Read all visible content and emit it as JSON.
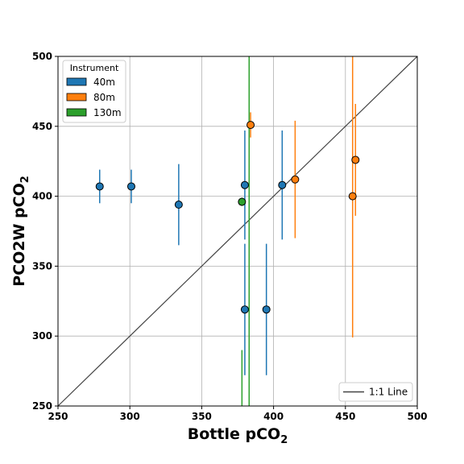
{
  "chart_data": {
    "type": "scatter",
    "xlabel": "Bottle pCO",
    "xlabel_sub": "2",
    "ylabel": "PCO2W pCO",
    "ylabel_sub": "2",
    "xlim": [
      250,
      500
    ],
    "ylim": [
      250,
      500
    ],
    "xticks": [
      250,
      300,
      350,
      400,
      450,
      500
    ],
    "yticks": [
      250,
      300,
      350,
      400,
      450,
      500
    ],
    "grid": true,
    "legend_placement": "top-left",
    "legend_title": "Instrument",
    "series": [
      {
        "name": "40m",
        "color": "#1f77b4",
        "points": [
          {
            "x": 279,
            "y": 407,
            "yerr": [
              395,
              419
            ]
          },
          {
            "x": 301,
            "y": 407,
            "yerr": [
              395,
              419
            ]
          },
          {
            "x": 334,
            "y": 394,
            "yerr": [
              365,
              423
            ]
          },
          {
            "x": 380,
            "y": 408,
            "yerr": [
              369,
              447
            ]
          },
          {
            "x": 406,
            "y": 408,
            "yerr": [
              369,
              447
            ]
          },
          {
            "x": 380,
            "y": 319,
            "yerr": [
              272,
              366
            ]
          },
          {
            "x": 395,
            "y": 319,
            "yerr": [
              272,
              366
            ]
          }
        ]
      },
      {
        "name": "80m",
        "color": "#ff7f0e",
        "points": [
          {
            "x": 384,
            "y": 451,
            "yerr": [
              442,
              460
            ]
          },
          {
            "x": 415,
            "y": 412,
            "yerr": [
              370,
              454
            ]
          },
          {
            "x": 457,
            "y": 426,
            "yerr": [
              386,
              466
            ]
          },
          {
            "x": 455,
            "y": 400,
            "yerr": [
              299,
              500
            ]
          }
        ]
      },
      {
        "name": "130m",
        "color": "#2ca02c",
        "points": [
          {
            "x": 378,
            "y": 396,
            "yerr": [
              393,
              399
            ]
          }
        ]
      }
    ],
    "extra_error_bars": [
      {
        "x": 383,
        "y_range": [
          250,
          500
        ],
        "color": "#2ca02c"
      },
      {
        "x": 378,
        "y_range": [
          250,
          290
        ],
        "color": "#2ca02c"
      }
    ],
    "reference_line": {
      "name": "1:1 Line",
      "from": [
        250,
        250
      ],
      "to": [
        500,
        500
      ],
      "color": "#444444"
    },
    "reference_legend_placement": "bottom-right"
  }
}
